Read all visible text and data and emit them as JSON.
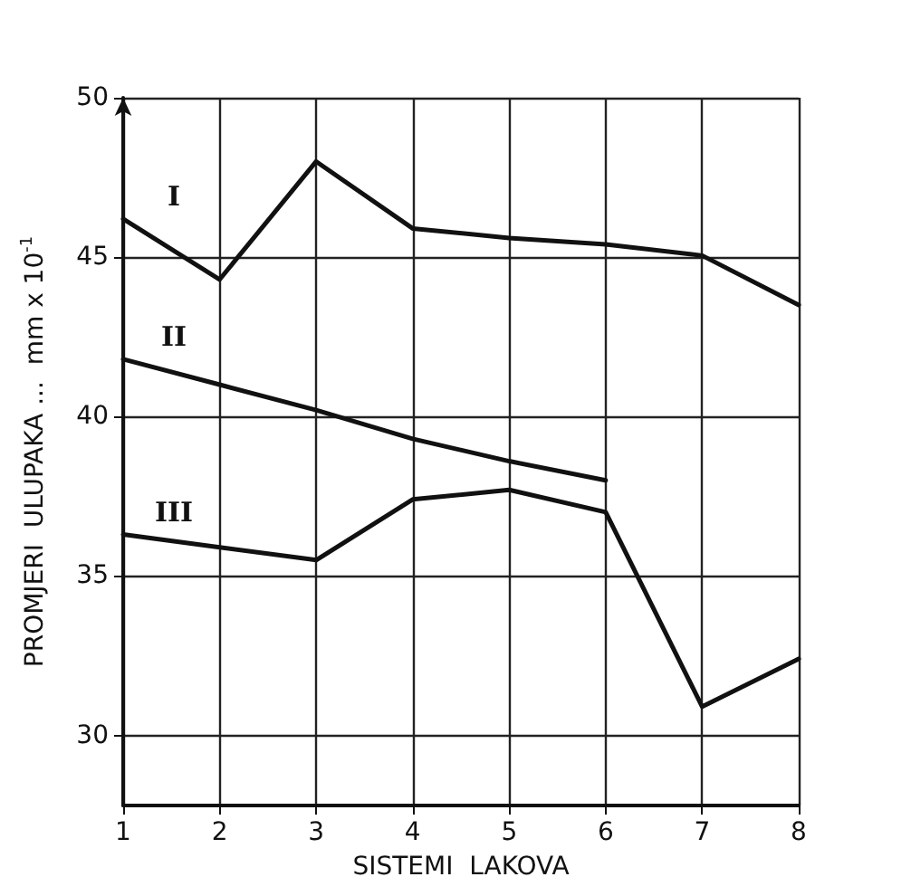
{
  "chart_data": {
    "type": "line",
    "xlabel": "SISTEMI  LAKOVA",
    "ylabel": "PROMJERI  ULUPAKA ...  mm x 10$^{-1}$",
    "x": [
      1,
      2,
      3,
      4,
      5,
      6,
      7,
      8
    ],
    "series": [
      {
        "name": "I",
        "color": "#111111",
        "values": [
          46.2,
          44.3,
          48.0,
          45.9,
          45.6,
          45.4,
          45.05,
          43.5
        ]
      },
      {
        "name": "II",
        "color": "#111111",
        "values": [
          41.8,
          41.0,
          40.2,
          39.3,
          38.6,
          38.0,
          null,
          null
        ]
      },
      {
        "name": "III",
        "color": "#111111",
        "values": [
          36.3,
          35.9,
          35.5,
          37.4,
          37.7,
          37.0,
          30.9,
          32.4
        ]
      }
    ],
    "xlim": [
      1,
      8
    ],
    "xticks": [
      1,
      2,
      3,
      4,
      5,
      6,
      7,
      8
    ],
    "ylim": [
      27.8,
      50
    ],
    "yticks": [
      30,
      35,
      40,
      45,
      50
    ],
    "grid": true,
    "legend": false,
    "marker": "none",
    "line_style": "solid"
  }
}
